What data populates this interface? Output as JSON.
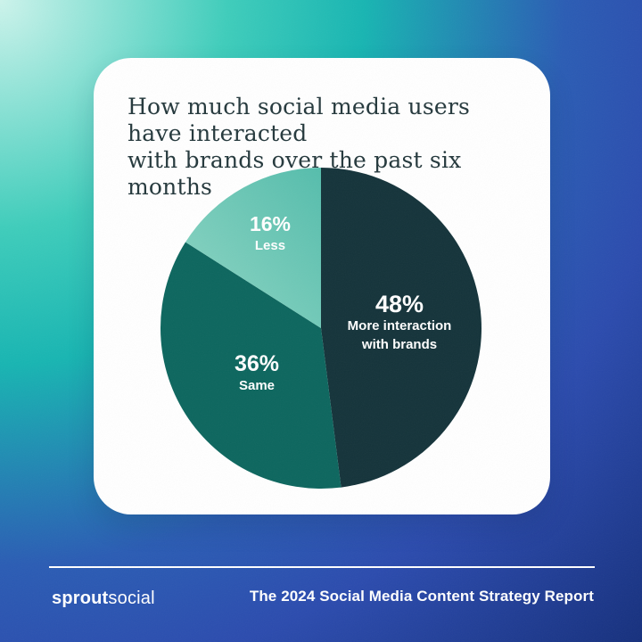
{
  "background": {
    "gradient_origin": "top-left",
    "gradient_stops": [
      "#cdf4ec 0%",
      "#3ecdbb 25%",
      "#17b5b2 40%",
      "#2a5cb4 62%",
      "#2b4bae 75%",
      "#152f7c 100%"
    ]
  },
  "card": {
    "title_lines": [
      "How much social media users have interacted",
      "with brands over the past six months"
    ],
    "title_color": "#24383c"
  },
  "chart_data": {
    "type": "pie",
    "title": "How much social media users have interacted with brands over the past six months",
    "start_angle_deg": 0,
    "direction": "clockwise",
    "legend_position": "inside-slices",
    "slices": [
      {
        "id": "more-interaction",
        "pct_label": "48%",
        "value": 48,
        "label_lines": [
          "More interaction",
          "with brands"
        ],
        "color": "#14333a"
      },
      {
        "id": "same",
        "pct_label": "36%",
        "value": 36,
        "label_lines": [
          "Same"
        ],
        "color": "#0c665e"
      },
      {
        "id": "less",
        "pct_label": "16%",
        "value": 16,
        "label_lines": [
          "Less"
        ],
        "color": "#6cc6b4",
        "gradient": [
          "#55bdac",
          "#8ed6c4"
        ]
      }
    ],
    "label_color": "#ffffff"
  },
  "footer": {
    "logo_bold": "sprout",
    "logo_regular": "social",
    "report_title": "The 2024 Social Media Content Strategy Report"
  }
}
